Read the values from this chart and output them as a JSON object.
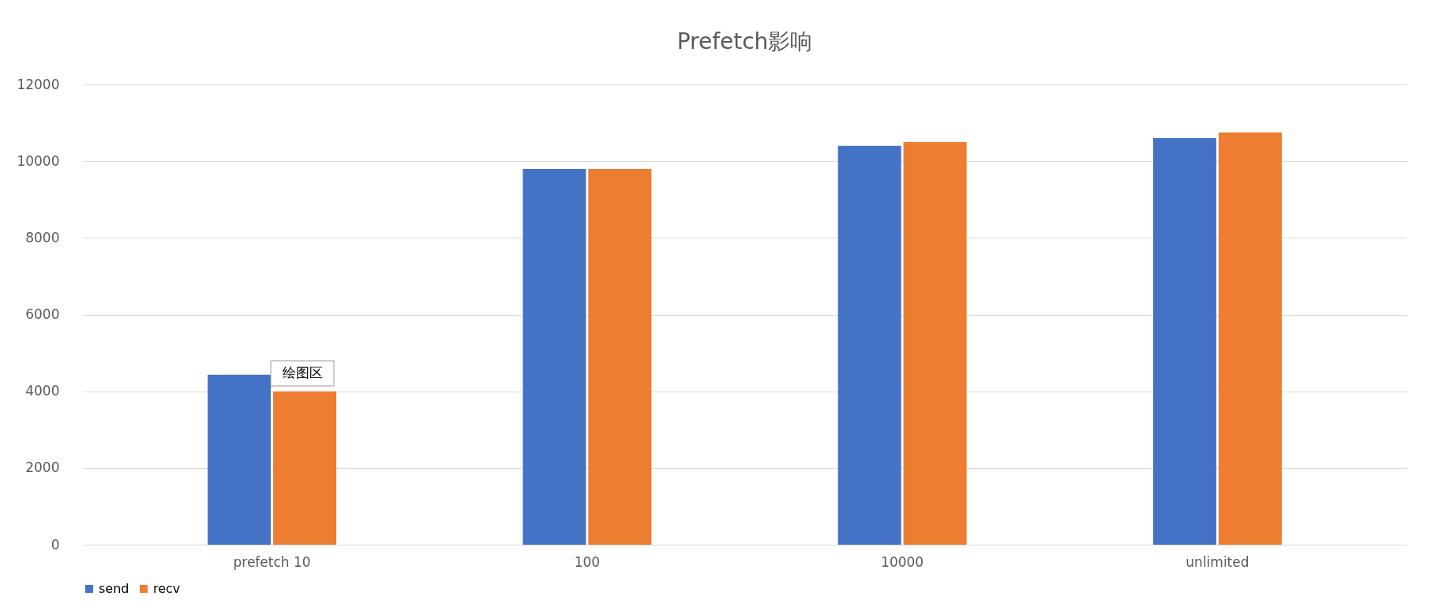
{
  "chart_data": {
    "type": "bar",
    "title": "Prefetch影响",
    "categories": [
      "prefetch 10",
      "100",
      "10000",
      "unlimited"
    ],
    "series": [
      {
        "name": "send",
        "color": "#4472c4",
        "values": [
          4430,
          9800,
          10400,
          10600
        ]
      },
      {
        "name": "recv",
        "color": "#ed7d31",
        "values": [
          4000,
          9800,
          10500,
          10750
        ]
      }
    ],
    "ylim": [
      0,
      12000
    ],
    "yticks": [
      0,
      2000,
      4000,
      6000,
      8000,
      10000,
      12000
    ],
    "grid": "y",
    "legend": "bottom",
    "annotations": [
      "绘图区"
    ]
  }
}
